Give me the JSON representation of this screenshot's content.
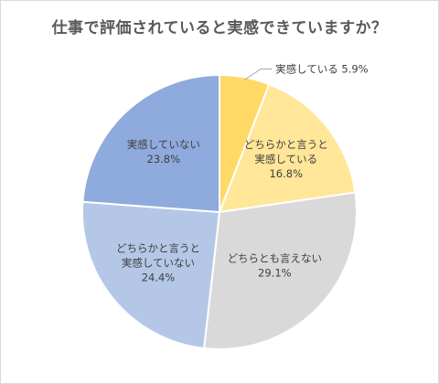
{
  "chart_data": {
    "type": "pie",
    "title": "仕事で評価されていると実感できていますか？",
    "start_angle_deg": 0,
    "direction": "clockwise",
    "slices": [
      {
        "label_lines": [
          "実感している 5.9%"
        ],
        "value": 5.9,
        "color": "#ffd966"
      },
      {
        "label_lines": [
          "どちらかと言うと",
          "実感している",
          "16.8%"
        ],
        "value": 16.8,
        "color": "#ffe699"
      },
      {
        "label_lines": [
          "どちらとも言えない",
          "29.1%"
        ],
        "value": 29.1,
        "color": "#d9d9d9"
      },
      {
        "label_lines": [
          "どちらかと言うと",
          "実感していない",
          "24.4%"
        ],
        "value": 24.4,
        "color": "#b4c7e7"
      },
      {
        "label_lines": [
          "実感していない",
          "23.8%"
        ],
        "value": 23.8,
        "color": "#8faadc"
      }
    ]
  }
}
